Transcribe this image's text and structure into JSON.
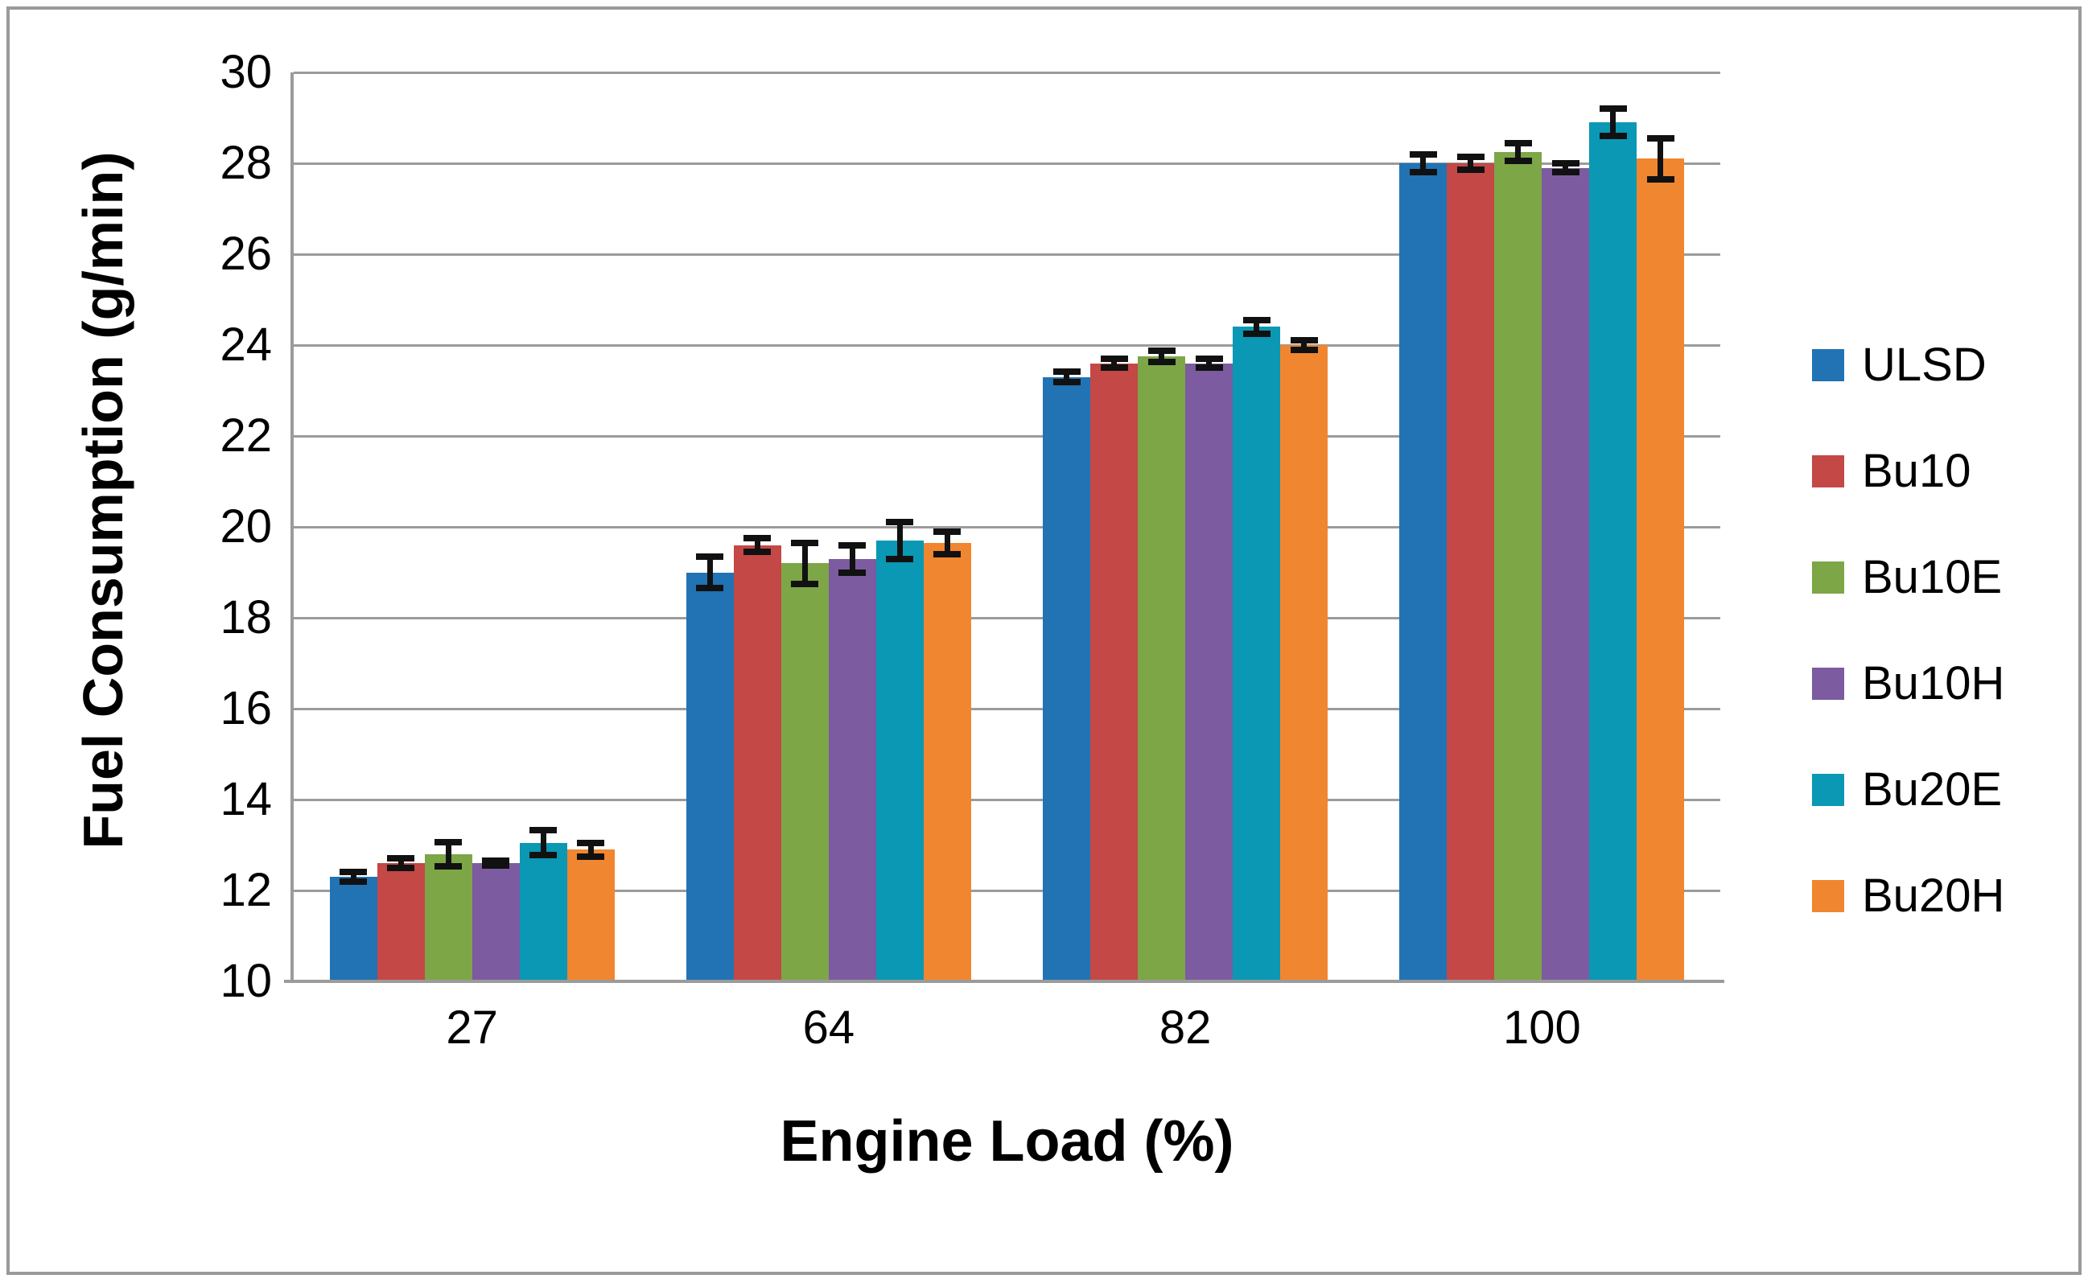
{
  "figure": {
    "frame_color": "#9A9A9A",
    "background": "#FFFFFF",
    "grid_color": "#9B9B9B",
    "axis_color": "#9B9B9B",
    "error_bar_color": "#111111"
  },
  "chart_data": {
    "type": "bar",
    "title": "",
    "xlabel": "Engine Load (%)",
    "ylabel": "Fuel Consumption (g/min)",
    "categories": [
      "27",
      "64",
      "82",
      "100"
    ],
    "ylim": [
      10,
      30
    ],
    "yticks": [
      10,
      12,
      14,
      16,
      18,
      20,
      22,
      24,
      26,
      28,
      30
    ],
    "grid": "horizontal",
    "legend_position": "right",
    "series": [
      {
        "name": "ULSD",
        "color": "#2173B4",
        "values": [
          12.3,
          19.0,
          23.3,
          28.0
        ],
        "errors": [
          0.1,
          0.35,
          0.12,
          0.2
        ]
      },
      {
        "name": "Bu10",
        "color": "#C34846",
        "values": [
          12.6,
          19.6,
          23.6,
          28.0
        ],
        "errors": [
          0.1,
          0.15,
          0.1,
          0.15
        ]
      },
      {
        "name": "Bu10E",
        "color": "#7DA647",
        "values": [
          12.8,
          19.2,
          23.75,
          28.25
        ],
        "errors": [
          0.27,
          0.45,
          0.12,
          0.2
        ]
      },
      {
        "name": "Bu10H",
        "color": "#7C5BA0",
        "values": [
          12.6,
          19.3,
          23.6,
          27.9
        ],
        "errors": [
          0.06,
          0.3,
          0.1,
          0.1
        ]
      },
      {
        "name": "Bu20E",
        "color": "#0A98B4",
        "values": [
          13.05,
          19.7,
          24.4,
          28.9
        ],
        "errors": [
          0.27,
          0.4,
          0.15,
          0.3
        ]
      },
      {
        "name": "Bu20H",
        "color": "#F0862F",
        "values": [
          12.9,
          19.65,
          24.0,
          28.1
        ],
        "errors": [
          0.15,
          0.25,
          0.1,
          0.45
        ]
      }
    ]
  }
}
